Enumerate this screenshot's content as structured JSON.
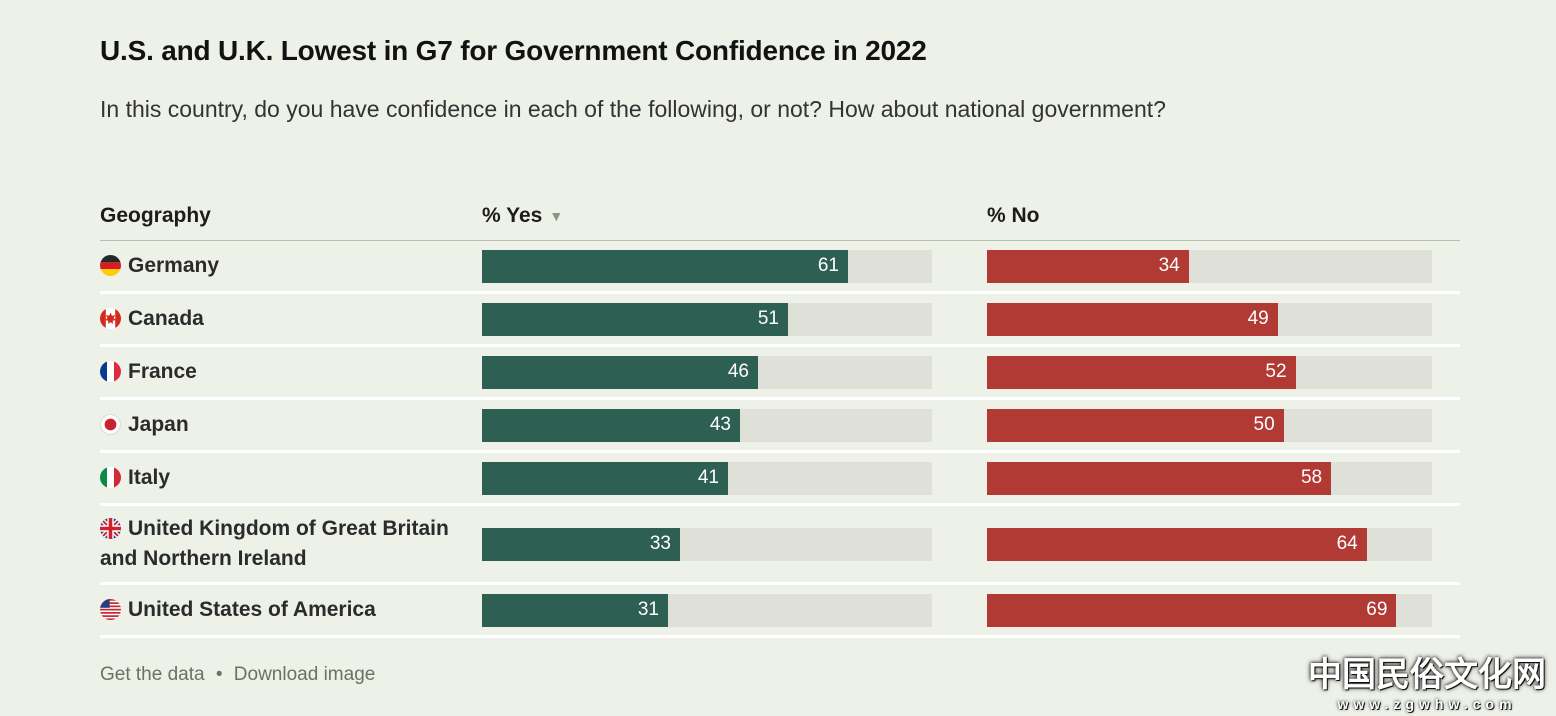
{
  "title": "U.S. and U.K. Lowest in G7 for Government Confidence in 2022",
  "subtitle": "In this country, do you have confidence in each of the following, or not? How about national government?",
  "columns": {
    "geography": "Geography",
    "yes": "% Yes",
    "sort_arrow": "▼",
    "no": "% No"
  },
  "chart_data": {
    "type": "bar",
    "orientation": "horizontal",
    "title": "U.S. and U.K. Lowest in G7 for Government Confidence in 2022",
    "categories": [
      "Germany",
      "Canada",
      "France",
      "Japan",
      "Italy",
      "United Kingdom of Great Britain and Northern Ireland",
      "United States of America"
    ],
    "flags": [
      "germany",
      "canada",
      "france",
      "japan",
      "italy",
      "uk",
      "usa"
    ],
    "series": [
      {
        "name": "% Yes",
        "color": "#2d5f53",
        "values": [
          61,
          51,
          46,
          43,
          41,
          33,
          31
        ]
      },
      {
        "name": "% No",
        "color": "#b13a35",
        "values": [
          34,
          49,
          52,
          50,
          58,
          64,
          69
        ]
      }
    ],
    "xlim": [
      0,
      75
    ],
    "track_color": "#dfe0d8",
    "grid": false,
    "legend_position": "column-headers",
    "sorted_by": "% Yes descending"
  },
  "footer": {
    "get_data": "Get the data",
    "separator": "•",
    "download": "Download image"
  },
  "watermark": {
    "line1": "中国民俗文化网",
    "line2": "www.zgwhw.com"
  }
}
